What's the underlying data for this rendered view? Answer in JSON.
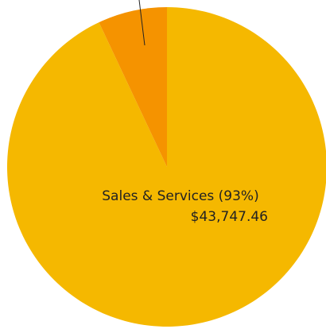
{
  "chart_data": {
    "type": "pie",
    "categories": [
      "Sales & Services",
      null
    ],
    "values": [
      93,
      7
    ],
    "value_labels": [
      "Sales & Services (93%)",
      null
    ],
    "amounts": [
      43747.46,
      null
    ],
    "amount_labels": [
      "$43,747.46",
      null
    ],
    "colors": [
      "#f5b800",
      "#f59300"
    ]
  }
}
